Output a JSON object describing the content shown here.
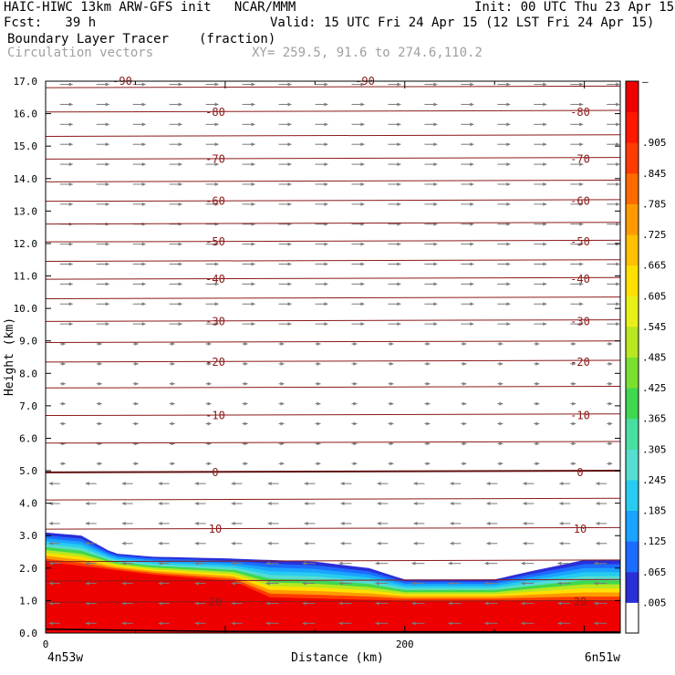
{
  "header": {
    "title_left": "HAIC-HIWC 13km ARW-GFS init   NCAR/MMM",
    "init": "Init: 00 UTC Thu 23 Apr 15",
    "fcst": "Fcst:   39 h",
    "valid": "Valid: 15 UTC Fri 24 Apr 15 (12 LST Fri 24 Apr 15)",
    "field_name": "Boundary Layer Tracer",
    "field_units": "(fraction)",
    "vectors_label": "Circulation vectors",
    "xy_label": "XY= 259.5, 91.6 to 274.6,110.2"
  },
  "colors": {
    "contour": "#8b1a1a",
    "vector": "#7a7a7a",
    "scale": [
      "#ffffff",
      "#2a2fd8",
      "#1c6cff",
      "#1aa3ff",
      "#27ccf0",
      "#55ddd0",
      "#48e0a0",
      "#40d850",
      "#7ae030",
      "#b8e820",
      "#e8f018",
      "#ffe000",
      "#ffc000",
      "#ff9a00",
      "#ff6a00",
      "#ff3c00",
      "#ff1800",
      "#ee0000"
    ]
  },
  "chart_data": {
    "type": "contour cross-section",
    "y_axis": {
      "label": "Height (km)",
      "ylim": [
        0.0,
        17.0
      ],
      "ticks": [
        "0.0",
        "1.0",
        "2.0",
        "3.0",
        "4.0",
        "5.0",
        "6.0",
        "7.0",
        "8.0",
        "9.0",
        "10.0",
        "11.0",
        "12.0",
        "13.0",
        "14.0",
        "15.0",
        "16.0",
        "17.0"
      ]
    },
    "x_axis": {
      "label": "Distance (km)",
      "xlim": [
        0,
        320
      ],
      "ticks": [
        "0",
        "200"
      ],
      "left_end": "4n53w",
      "right_end": "6n51w"
    },
    "colorbar": {
      "top_label": "–",
      "labels": [
        ".005",
        ".065",
        ".125",
        ".185",
        ".245",
        ".305",
        ".365",
        ".425",
        ".485",
        ".545",
        ".605",
        ".665",
        ".725",
        ".785",
        ".845",
        ".905"
      ]
    },
    "temperature_contours": [
      {
        "label": "-80",
        "height_km": 16.05
      },
      {
        "label": "-70",
        "height_km": 14.6
      },
      {
        "label": "-60",
        "height_km": 13.3
      },
      {
        "label": "-50",
        "height_km": 12.05
      },
      {
        "label": "-40",
        "height_km": 10.9
      },
      {
        "label": "-30",
        "height_km": 9.6
      },
      {
        "label": "-20",
        "height_km": 8.35
      },
      {
        "label": "-10",
        "height_km": 6.7
      },
      {
        "label": "0",
        "height_km": 4.95
      },
      {
        "label": "10",
        "height_km": 3.2
      },
      {
        "label": "20",
        "height_km": 0.95
      }
    ],
    "clipped_top_labels": [
      "-90",
      "-90"
    ],
    "tracer_top_km": [
      [
        0,
        3.1
      ],
      [
        20,
        3.0
      ],
      [
        38,
        2.45
      ],
      [
        60,
        2.35
      ],
      [
        100,
        2.3
      ],
      [
        150,
        2.2
      ],
      [
        180,
        2.0
      ],
      [
        200,
        1.65
      ],
      [
        250,
        1.65
      ],
      [
        270,
        1.9
      ],
      [
        300,
        2.25
      ],
      [
        320,
        2.25
      ]
    ],
    "tracer_high_km": [
      [
        0,
        2.2
      ],
      [
        60,
        1.8
      ],
      [
        105,
        1.6
      ],
      [
        125,
        1.1
      ],
      [
        200,
        1.0
      ],
      [
        320,
        1.0
      ]
    ]
  }
}
